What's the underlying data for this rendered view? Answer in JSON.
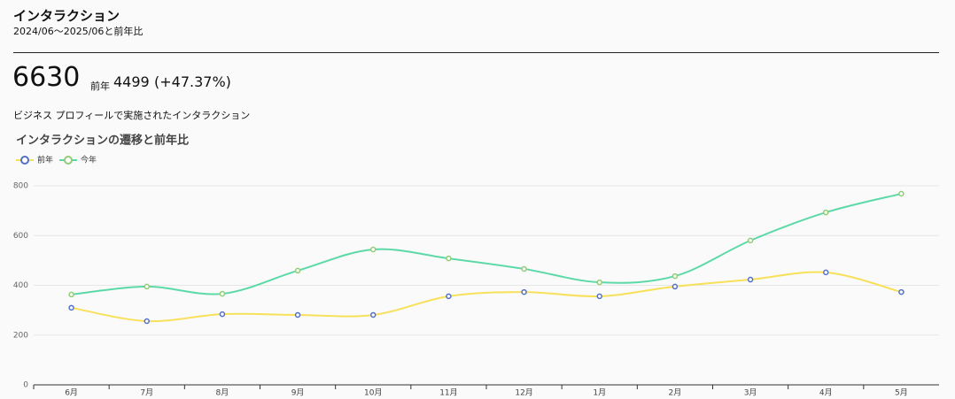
{
  "header": {
    "title": "インタラクション",
    "subtitle": "2024/06〜2025/06と前年比"
  },
  "summary": {
    "value": 6630,
    "previous_label": "前年",
    "previous_value": 4499,
    "change": "(+47.37%)",
    "description": "ビジネス プロフィールで実施されたインタラクション"
  },
  "chart_data": {
    "type": "line",
    "title": "インタラクションの遷移と前年比",
    "categories": [
      "6月",
      "7月",
      "8月",
      "9月",
      "10月",
      "11月",
      "12月",
      "1月",
      "2月",
      "3月",
      "4月",
      "5月"
    ],
    "series": [
      {
        "name": "前年",
        "color": "#f7e05a",
        "marker_color": "#5470c6",
        "values": [
          310,
          256,
          284,
          281,
          281,
          356,
          373,
          356,
          395,
          423,
          452,
          373
        ]
      },
      {
        "name": "今年",
        "color": "#5dd9a8",
        "marker_color": "#91cc75",
        "values": [
          363,
          395,
          366,
          459,
          544,
          508,
          466,
          412,
          437,
          580,
          693,
          768
        ]
      }
    ],
    "ylim": [
      0,
      800
    ],
    "yticks": [
      0,
      200,
      400,
      600,
      800
    ],
    "grid": true,
    "smooth": true
  }
}
